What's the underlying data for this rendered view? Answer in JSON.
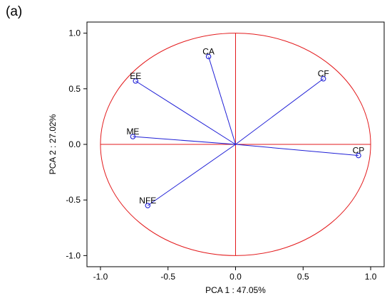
{
  "panel_label": "(a)",
  "colors": {
    "circle": "#e31a1c",
    "reference_lines": "#e31a1c",
    "vectors": "#1f1fd6",
    "markers": "#1f1fd6",
    "frame": "#000000"
  },
  "chart_data": {
    "type": "scatter",
    "title": "",
    "xlabel": "PCA 1 : 47.05%",
    "ylabel": "PCA 2 : 27.02%",
    "xlim": [
      -1.1,
      1.1
    ],
    "ylim": [
      -1.1,
      1.1
    ],
    "xticks": [
      -1.0,
      -0.5,
      0.0,
      0.5,
      1.0
    ],
    "yticks": [
      -1.0,
      -0.5,
      0.0,
      0.5,
      1.0
    ],
    "xtick_labels": [
      "-1.0",
      "-0.5",
      "0.0",
      "0.5",
      "1.0"
    ],
    "ytick_labels": [
      "-1.0",
      "-0.5",
      "0.0",
      "0.5",
      "1.0"
    ],
    "grid": false,
    "unit_circle": true,
    "points": [
      {
        "label": "CA",
        "x": -0.2,
        "y": 0.79
      },
      {
        "label": "EE",
        "x": -0.74,
        "y": 0.57
      },
      {
        "label": "CF",
        "x": 0.65,
        "y": 0.59
      },
      {
        "label": "ME",
        "x": -0.76,
        "y": 0.07
      },
      {
        "label": "CP",
        "x": 0.91,
        "y": -0.1
      },
      {
        "label": "NFE",
        "x": -0.65,
        "y": -0.55
      }
    ]
  }
}
